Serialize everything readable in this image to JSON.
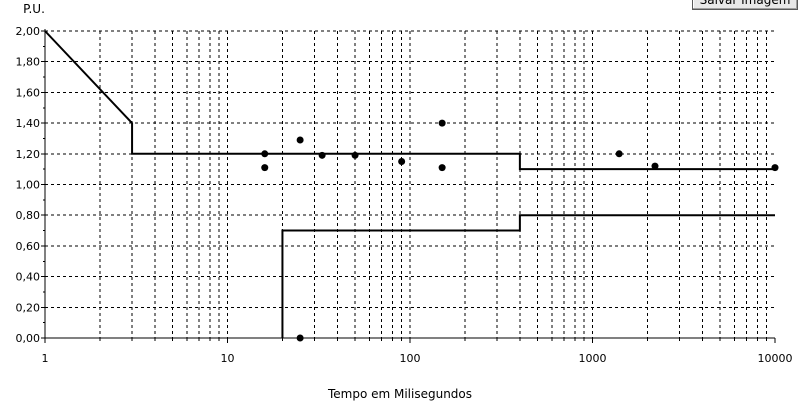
{
  "toolbar": {
    "save_label": "Salvar Imagem"
  },
  "chart_data": {
    "type": "line",
    "ylabel": "P.U.",
    "xlabel": "Tempo em Milisegundos",
    "xscale": "log",
    "xlim": [
      1,
      10000
    ],
    "ylim": [
      0,
      2
    ],
    "grid": true,
    "x_tick_labels": [
      {
        "value": 1,
        "label": "1"
      },
      {
        "value": 10,
        "label": "10"
      },
      {
        "value": 100,
        "label": "100"
      },
      {
        "value": 1000,
        "label": "1000"
      },
      {
        "value": 10000,
        "label": "10000"
      }
    ],
    "y_tick_labels": [
      {
        "value": 0,
        "label": "0,00"
      },
      {
        "value": 0.2,
        "label": "0,20"
      },
      {
        "value": 0.4,
        "label": "0,40"
      },
      {
        "value": 0.6,
        "label": "0,60"
      },
      {
        "value": 0.8,
        "label": "0,80"
      },
      {
        "value": 1.0,
        "label": "1,00"
      },
      {
        "value": 1.2,
        "label": "1,20"
      },
      {
        "value": 1.4,
        "label": "1,40"
      },
      {
        "value": 1.6,
        "label": "1,60"
      },
      {
        "value": 1.8,
        "label": "1,80"
      },
      {
        "value": 2.0,
        "label": "2,00"
      }
    ],
    "lines": [
      {
        "points": [
          [
            1,
            2.0
          ],
          [
            3,
            1.4
          ],
          [
            3,
            1.2
          ],
          [
            400,
            1.2
          ],
          [
            400,
            1.1
          ],
          [
            10000,
            1.1
          ]
        ]
      },
      {
        "points": [
          [
            20,
            0.0
          ],
          [
            20,
            0.7
          ],
          [
            400,
            0.7
          ],
          [
            400,
            0.8
          ],
          [
            10000,
            0.8
          ]
        ]
      }
    ],
    "points": [
      [
        16,
        1.2
      ],
      [
        16,
        1.11
      ],
      [
        25,
        1.29
      ],
      [
        33,
        1.19
      ],
      [
        50,
        1.19
      ],
      [
        90,
        1.15
      ],
      [
        150,
        1.4
      ],
      [
        150,
        1.11
      ],
      [
        1400,
        1.2
      ],
      [
        2200,
        1.12
      ],
      [
        10000,
        1.11
      ],
      [
        25,
        0.0
      ]
    ]
  }
}
